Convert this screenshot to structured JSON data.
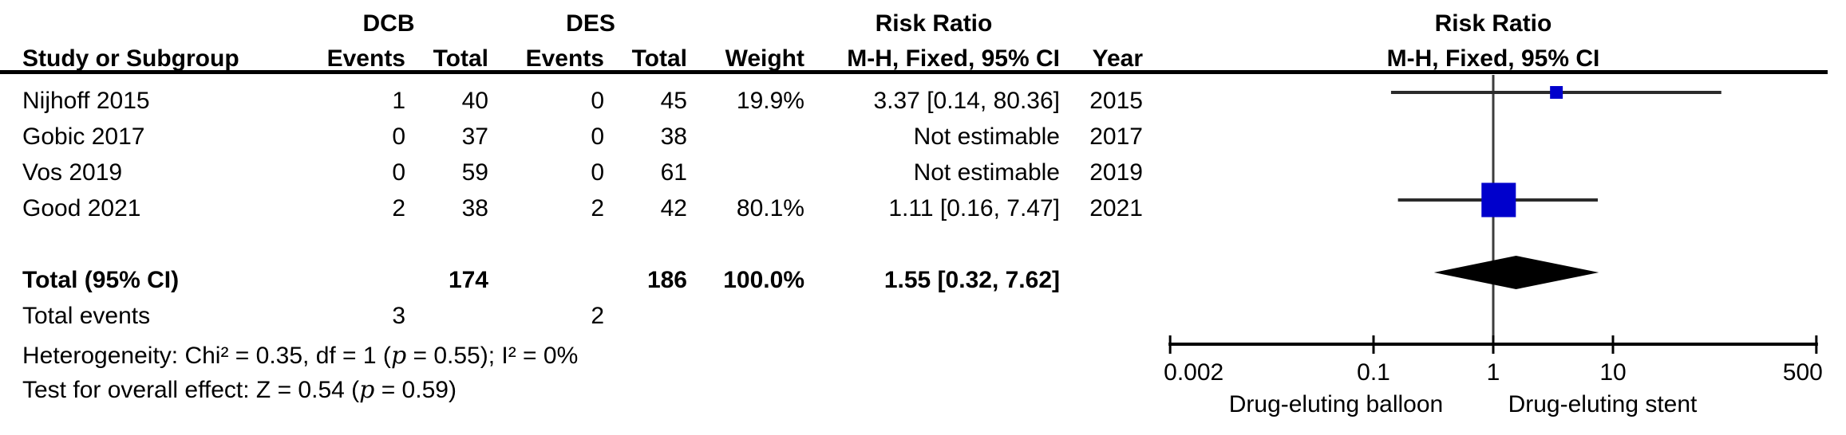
{
  "figure": {
    "groups": {
      "dcb": "DCB",
      "des": "DES"
    },
    "columns": {
      "study": "Study or Subgroup",
      "events": "Events",
      "total": "Total",
      "weight": "Weight",
      "ci": "M-H, Fixed, 95% CI",
      "year": "Year"
    },
    "risk_ratio_header": "Risk Ratio",
    "plot": {
      "title": "Risk Ratio",
      "subtitle": "M-H, Fixed, 95% CI"
    }
  },
  "rows": [
    {
      "study": "Nijhoff 2015",
      "dcb_events": "1",
      "dcb_total": "40",
      "des_events": "0",
      "des_total": "45",
      "weight": "19.9%",
      "ci": "3.37 [0.14, 80.36]",
      "year": "2015"
    },
    {
      "study": "Gobic 2017",
      "dcb_events": "0",
      "dcb_total": "37",
      "des_events": "0",
      "des_total": "38",
      "weight": "",
      "ci": "Not estimable",
      "year": "2017"
    },
    {
      "study": "Vos 2019",
      "dcb_events": "0",
      "dcb_total": "59",
      "des_events": "0",
      "des_total": "61",
      "weight": "",
      "ci": "Not estimable",
      "year": "2019"
    },
    {
      "study": "Good 2021",
      "dcb_events": "2",
      "dcb_total": "38",
      "des_events": "2",
      "des_total": "42",
      "weight": "80.1%",
      "ci": "1.11 [0.16, 7.47]",
      "year": "2021"
    }
  ],
  "total_row": {
    "label": "Total (95% CI)",
    "dcb_total": "174",
    "des_total": "186",
    "weight": "100.0%",
    "ci": "1.55 [0.32, 7.62]"
  },
  "total_events": {
    "label": "Total events",
    "dcb": "3",
    "des": "2"
  },
  "heterogeneity": {
    "pre": "Heterogeneity: Chi² = 0.35, df = 1 (",
    "p": "p",
    "post": " = 0.55); I² = 0%"
  },
  "overall_effect": {
    "pre": "Test for overall effect: Z = 0.54 (",
    "p": "p",
    "post": " = 0.59)"
  },
  "chart_data": {
    "type": "forest",
    "effect_measure": "Risk Ratio",
    "method": "M-H, Fixed, 95% CI",
    "x_scale": "log10",
    "xlim": [
      0.002,
      500
    ],
    "axis_ticks": [
      0.002,
      0.1,
      1,
      10,
      500
    ],
    "axis_tick_labels": [
      "0.002",
      "0.1",
      "1",
      "10",
      "500"
    ],
    "axis_left_label": "Drug-eluting balloon",
    "axis_right_label": "Drug-eluting stent",
    "studies": [
      {
        "name": "Nijhoff 2015",
        "year": 2015,
        "dcb_events": 1,
        "dcb_total": 40,
        "des_events": 0,
        "des_total": 45,
        "rr": 3.37,
        "ci_low": 0.14,
        "ci_high": 80.36,
        "weight": 19.9
      },
      {
        "name": "Gobic 2017",
        "year": 2017,
        "dcb_events": 0,
        "dcb_total": 37,
        "des_events": 0,
        "des_total": 38,
        "rr": null,
        "ci_low": null,
        "ci_high": null,
        "weight": null
      },
      {
        "name": "Vos 2019",
        "year": 2019,
        "dcb_events": 0,
        "dcb_total": 59,
        "des_events": 0,
        "des_total": 61,
        "rr": null,
        "ci_low": null,
        "ci_high": null,
        "weight": null
      },
      {
        "name": "Good 2021",
        "year": 2021,
        "dcb_events": 2,
        "dcb_total": 38,
        "des_events": 2,
        "des_total": 42,
        "rr": 1.11,
        "ci_low": 0.16,
        "ci_high": 7.47,
        "weight": 80.1
      }
    ],
    "total": {
      "rr": 1.55,
      "ci_low": 0.32,
      "ci_high": 7.62,
      "weight": 100.0,
      "dcb_events": 3,
      "dcb_total": 174,
      "des_events": 2,
      "des_total": 186
    },
    "heterogeneity": {
      "chi2": 0.35,
      "df": 1,
      "p": 0.55,
      "i2_pct": 0
    },
    "overall_effect": {
      "z": 0.54,
      "p": 0.59
    },
    "colors": {
      "square": "#0000CC",
      "diamond": "#000000",
      "ci_line": "#2b2b2b",
      "axis": "#000000",
      "null_line": "#3d3d3d"
    }
  }
}
